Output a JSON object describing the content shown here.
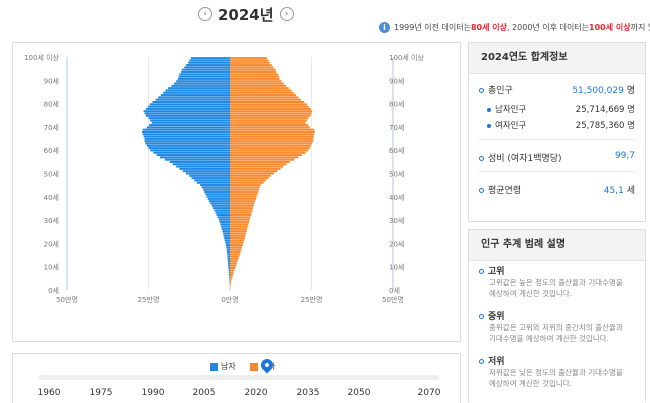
{
  "header": {
    "prev_icon": "chevron-left-icon",
    "next_icon": "chevron-right-icon",
    "year_title": "2024년",
    "note_prefix": "1999년 이전 데이터는 ",
    "note_red1": "80세 이상",
    "note_mid": ", 2000년 이후 데이터는 ",
    "note_red2": "100세 이상",
    "note_suffix": "까지 있습니다."
  },
  "colors": {
    "male": "#1e88e5",
    "female": "#f7892e",
    "accent": "#1e74d8",
    "red": "#e3262c"
  },
  "chart_data": {
    "type": "bar",
    "orientation": "horizontal-pyramid",
    "age_labels": [
      "100세 이상",
      "90세",
      "80세",
      "70세",
      "60세",
      "50세",
      "40세",
      "30세",
      "20세",
      "10세",
      "0세"
    ],
    "x_tick_labels": [
      "50만명",
      "25만명",
      "0만명",
      "25만명",
      "50만명"
    ],
    "xlim": [
      -500000,
      500000
    ],
    "grid": true,
    "legend_position": "bottom",
    "series": [
      {
        "name": "남자",
        "values": [
          200,
          400,
          700,
          1100,
          1600,
          2100,
          2700,
          3300,
          4000,
          4800,
          5500,
          6200,
          6800,
          7400,
          8000,
          8600,
          9200,
          10200,
          11400,
          12700,
          14300,
          16200,
          17900,
          19600,
          21300,
          23300,
          25200,
          27200,
          29800,
          31900,
          34100,
          37800,
          41200,
          44400,
          47800,
          51800,
          55700,
          60600,
          65000,
          68600,
          72200,
          75700,
          79200,
          82400,
          86800,
          91600,
          102000,
          110000,
          118000,
          125000,
          135000,
          145000,
          155000,
          165000,
          175000,
          185000,
          200000,
          215000,
          225000,
          235000,
          245000,
          250000,
          255000,
          260000,
          262000,
          262000,
          265000,
          268000,
          270000,
          268000,
          255000,
          248000,
          240000,
          245000,
          250000,
          258000,
          262000,
          265000,
          258000,
          252000,
          246000,
          238000,
          228000,
          220000,
          212000,
          205000,
          198000,
          190000,
          180000,
          172000,
          165000,
          160000,
          158000,
          155000,
          150000,
          148000,
          140000,
          135000,
          128000,
          125000,
          120000
        ]
      },
      {
        "name": "여자",
        "values": [
          500,
          1200,
          2100,
          3400,
          5000,
          6900,
          9100,
          11400,
          13700,
          16100,
          18700,
          21000,
          23300,
          25800,
          28000,
          30400,
          32700,
          34900,
          37100,
          39300,
          41500,
          43700,
          45500,
          47400,
          49200,
          51000,
          52700,
          54600,
          56500,
          58500,
          60700,
          63000,
          65000,
          66500,
          68600,
          70700,
          72500,
          74700,
          77000,
          79400,
          82000,
          84400,
          86800,
          89000,
          91300,
          94000,
          103000,
          110000,
          118000,
          125000,
          135000,
          145000,
          155000,
          163000,
          173000,
          183000,
          198000,
          210000,
          220000,
          232000,
          240000,
          245000,
          248000,
          252000,
          255000,
          255000,
          257000,
          258000,
          260000,
          258000,
          245000,
          240000,
          232000,
          236000,
          240000,
          247000,
          250000,
          252000,
          248000,
          242000,
          236000,
          228000,
          218000,
          210000,
          202000,
          195000,
          188000,
          180000,
          172000,
          165000,
          158000,
          152000,
          150000,
          148000,
          142000,
          140000,
          133000,
          128000,
          122000,
          118000,
          113000
        ]
      }
    ]
  },
  "legend": {
    "male": "남자",
    "female": "여자"
  },
  "timeline": {
    "labels": [
      "1960",
      "1975",
      "1990",
      "2005",
      "2020",
      "2035",
      "2050",
      "2070"
    ],
    "pin_icon": "map-pin-icon"
  },
  "summary": {
    "title": "2024연도 합계정보",
    "total_label": "총인구",
    "total_value": "51,500,029",
    "total_unit": "명",
    "male_label": "남자인구",
    "male_value": "25,714,669",
    "male_unit": "명",
    "female_label": "여자인구",
    "female_value": "25,785,360",
    "female_unit": "명",
    "ratio_label": "성비 (여자1백명당)",
    "ratio_value": "99,7",
    "age_label": "평균연령",
    "age_value": "45,1",
    "age_unit": "세"
  },
  "legend_desc": {
    "title": "인구 추계 범례 설명",
    "items": [
      {
        "name": "고위",
        "text": "고위값은 높은 정도의 출산율과 기대수명을 예상하여 계산한 것입니다."
      },
      {
        "name": "중위",
        "text": "중위값은 고위와 저위의 중간치의 출산율과 기대수명을 예상하여 계산한 것입니다."
      },
      {
        "name": "저위",
        "text": "저위값은 낮은 정도의 출산율과 기대수명을 예상하여 계산한 것입니다."
      }
    ]
  }
}
